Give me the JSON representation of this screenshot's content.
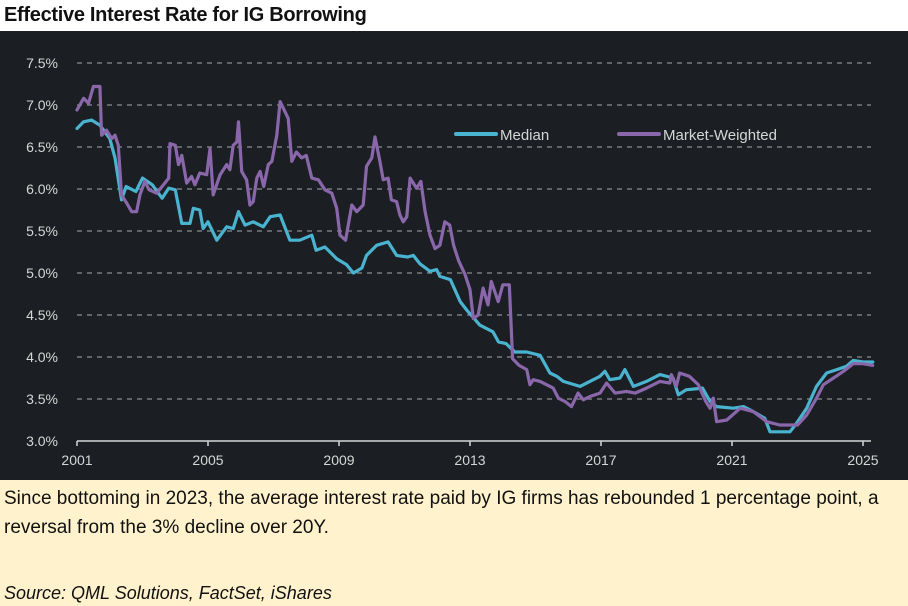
{
  "title": "Effective Interest Rate for IG Borrowing",
  "caption": "Since bottoming in 2023, the average interest rate paid by IG firms has rebounded 1 percentage point, a reversal from the 3% decline over 20Y.",
  "source": "Source: QML Solutions, FactSet, iShares",
  "chart_data": {
    "type": "line",
    "title": "Effective Interest Rate for IG Borrowing",
    "xlabel": "",
    "ylabel": "",
    "xlim": [
      2001,
      2025.3
    ],
    "ylim": [
      3.0,
      7.5
    ],
    "x_ticks": [
      2001,
      2005,
      2009,
      2013,
      2017,
      2021,
      2025
    ],
    "x_tick_labels": [
      "2001",
      "2005",
      "2009",
      "2013",
      "2017",
      "2021",
      "2025"
    ],
    "y_ticks": [
      3.0,
      3.5,
      4.0,
      4.5,
      5.0,
      5.5,
      6.0,
      6.5,
      7.0,
      7.5
    ],
    "y_tick_labels": [
      "3.0%",
      "3.5%",
      "4.0%",
      "4.5%",
      "5.0%",
      "5.5%",
      "6.0%",
      "6.5%",
      "7.0%",
      "7.5%"
    ],
    "grid": "horizontal dashed",
    "legend_position": "top-right",
    "colors": {
      "Median": "#4ab3d0",
      "Market-Weighted": "#8a67ab"
    },
    "series": [
      {
        "name": "Median",
        "points": [
          [
            2001.0,
            6.72
          ],
          [
            2001.2,
            6.8
          ],
          [
            2001.45,
            6.82
          ],
          [
            2001.7,
            6.76
          ],
          [
            2002.0,
            6.6
          ],
          [
            2002.16,
            6.37
          ],
          [
            2002.36,
            5.87
          ],
          [
            2002.5,
            6.03
          ],
          [
            2002.8,
            5.97
          ],
          [
            2003.0,
            6.13
          ],
          [
            2003.3,
            6.05
          ],
          [
            2003.6,
            5.89
          ],
          [
            2003.8,
            6.01
          ],
          [
            2004.0,
            5.99
          ],
          [
            2004.2,
            5.59
          ],
          [
            2004.45,
            5.59
          ],
          [
            2004.55,
            5.77
          ],
          [
            2004.75,
            5.75
          ],
          [
            2004.85,
            5.53
          ],
          [
            2005.0,
            5.61
          ],
          [
            2005.27,
            5.39
          ],
          [
            2005.57,
            5.55
          ],
          [
            2005.77,
            5.53
          ],
          [
            2005.93,
            5.73
          ],
          [
            2006.13,
            5.57
          ],
          [
            2006.38,
            5.61
          ],
          [
            2006.69,
            5.55
          ],
          [
            2006.9,
            5.67
          ],
          [
            2007.2,
            5.69
          ],
          [
            2007.5,
            5.39
          ],
          [
            2007.8,
            5.39
          ],
          [
            2008.17,
            5.45
          ],
          [
            2008.3,
            5.27
          ],
          [
            2008.57,
            5.31
          ],
          [
            2008.93,
            5.17
          ],
          [
            2009.23,
            5.1
          ],
          [
            2009.44,
            5.0
          ],
          [
            2009.7,
            5.06
          ],
          [
            2009.84,
            5.21
          ],
          [
            2010.15,
            5.33
          ],
          [
            2010.5,
            5.37
          ],
          [
            2010.76,
            5.21
          ],
          [
            2011.1,
            5.19
          ],
          [
            2011.27,
            5.21
          ],
          [
            2011.47,
            5.11
          ],
          [
            2011.78,
            5.02
          ],
          [
            2011.98,
            5.04
          ],
          [
            2012.08,
            4.96
          ],
          [
            2012.4,
            4.92
          ],
          [
            2012.7,
            4.66
          ],
          [
            2012.9,
            4.56
          ],
          [
            2013.3,
            4.38
          ],
          [
            2013.7,
            4.3
          ],
          [
            2013.87,
            4.18
          ],
          [
            2014.1,
            4.16
          ],
          [
            2014.37,
            4.06
          ],
          [
            2014.73,
            4.06
          ],
          [
            2015.14,
            4.02
          ],
          [
            2015.44,
            3.81
          ],
          [
            2015.65,
            3.77
          ],
          [
            2015.85,
            3.71
          ],
          [
            2016.36,
            3.65
          ],
          [
            2016.66,
            3.71
          ],
          [
            2016.97,
            3.77
          ],
          [
            2017.12,
            3.83
          ],
          [
            2017.27,
            3.73
          ],
          [
            2017.58,
            3.75
          ],
          [
            2017.73,
            3.85
          ],
          [
            2017.99,
            3.65
          ],
          [
            2018.39,
            3.71
          ],
          [
            2018.8,
            3.79
          ],
          [
            2019.2,
            3.75
          ],
          [
            2019.36,
            3.55
          ],
          [
            2019.6,
            3.61
          ],
          [
            2020.1,
            3.63
          ],
          [
            2020.33,
            3.47
          ],
          [
            2020.53,
            3.41
          ],
          [
            2021.04,
            3.39
          ],
          [
            2021.35,
            3.41
          ],
          [
            2021.65,
            3.35
          ],
          [
            2022.0,
            3.27
          ],
          [
            2022.16,
            3.11
          ],
          [
            2022.36,
            3.11
          ],
          [
            2022.77,
            3.11
          ],
          [
            2022.97,
            3.21
          ],
          [
            2023.28,
            3.39
          ],
          [
            2023.58,
            3.65
          ],
          [
            2023.89,
            3.81
          ],
          [
            2024.2,
            3.85
          ],
          [
            2024.5,
            3.89
          ],
          [
            2024.7,
            3.96
          ],
          [
            2025.0,
            3.94
          ],
          [
            2025.3,
            3.94
          ]
        ]
      },
      {
        "name": "Market-Weighted",
        "points": [
          [
            2001.0,
            6.94
          ],
          [
            2001.2,
            7.08
          ],
          [
            2001.35,
            7.02
          ],
          [
            2001.5,
            7.22
          ],
          [
            2001.7,
            7.22
          ],
          [
            2001.75,
            6.64
          ],
          [
            2001.9,
            6.7
          ],
          [
            2002.06,
            6.6
          ],
          [
            2002.16,
            6.64
          ],
          [
            2002.26,
            6.52
          ],
          [
            2002.36,
            5.93
          ],
          [
            2002.52,
            5.83
          ],
          [
            2002.67,
            5.73
          ],
          [
            2002.82,
            5.73
          ],
          [
            2002.92,
            5.93
          ],
          [
            2003.07,
            6.09
          ],
          [
            2003.2,
            5.99
          ],
          [
            2003.43,
            5.95
          ],
          [
            2003.6,
            6.03
          ],
          [
            2003.8,
            6.13
          ],
          [
            2003.84,
            6.54
          ],
          [
            2004.0,
            6.52
          ],
          [
            2004.1,
            6.29
          ],
          [
            2004.2,
            6.4
          ],
          [
            2004.35,
            6.07
          ],
          [
            2004.5,
            6.15
          ],
          [
            2004.6,
            6.05
          ],
          [
            2004.75,
            6.19
          ],
          [
            2004.96,
            6.17
          ],
          [
            2005.06,
            6.48
          ],
          [
            2005.16,
            5.93
          ],
          [
            2005.37,
            6.17
          ],
          [
            2005.57,
            6.29
          ],
          [
            2005.67,
            6.23
          ],
          [
            2005.77,
            6.52
          ],
          [
            2005.88,
            6.56
          ],
          [
            2005.93,
            6.8
          ],
          [
            2006.03,
            6.21
          ],
          [
            2006.18,
            6.11
          ],
          [
            2006.28,
            5.81
          ],
          [
            2006.38,
            5.85
          ],
          [
            2006.49,
            6.13
          ],
          [
            2006.59,
            6.21
          ],
          [
            2006.7,
            6.03
          ],
          [
            2006.84,
            6.29
          ],
          [
            2006.95,
            6.33
          ],
          [
            2007.1,
            6.64
          ],
          [
            2007.2,
            7.04
          ],
          [
            2007.45,
            6.84
          ],
          [
            2007.56,
            6.33
          ],
          [
            2007.7,
            6.44
          ],
          [
            2007.86,
            6.37
          ],
          [
            2008.0,
            6.4
          ],
          [
            2008.17,
            6.13
          ],
          [
            2008.37,
            6.11
          ],
          [
            2008.57,
            5.99
          ],
          [
            2008.78,
            5.95
          ],
          [
            2008.93,
            5.77
          ],
          [
            2009.03,
            5.45
          ],
          [
            2009.2,
            5.39
          ],
          [
            2009.39,
            5.81
          ],
          [
            2009.54,
            5.73
          ],
          [
            2009.74,
            5.81
          ],
          [
            2009.84,
            6.27
          ],
          [
            2010.0,
            6.37
          ],
          [
            2010.1,
            6.62
          ],
          [
            2010.25,
            6.33
          ],
          [
            2010.35,
            6.11
          ],
          [
            2010.5,
            6.13
          ],
          [
            2010.6,
            5.87
          ],
          [
            2010.76,
            5.85
          ],
          [
            2010.86,
            5.69
          ],
          [
            2010.96,
            5.61
          ],
          [
            2011.07,
            5.67
          ],
          [
            2011.17,
            6.13
          ],
          [
            2011.37,
            6.01
          ],
          [
            2011.5,
            6.09
          ],
          [
            2011.63,
            5.73
          ],
          [
            2011.78,
            5.45
          ],
          [
            2011.93,
            5.29
          ],
          [
            2012.08,
            5.33
          ],
          [
            2012.23,
            5.61
          ],
          [
            2012.38,
            5.57
          ],
          [
            2012.5,
            5.33
          ],
          [
            2012.65,
            5.15
          ],
          [
            2012.85,
            4.98
          ],
          [
            2013.0,
            4.8
          ],
          [
            2013.1,
            4.46
          ],
          [
            2013.25,
            4.5
          ],
          [
            2013.4,
            4.82
          ],
          [
            2013.55,
            4.62
          ],
          [
            2013.65,
            4.9
          ],
          [
            2013.86,
            4.66
          ],
          [
            2014.0,
            4.86
          ],
          [
            2014.2,
            4.86
          ],
          [
            2014.3,
            3.98
          ],
          [
            2014.5,
            3.9
          ],
          [
            2014.73,
            3.85
          ],
          [
            2014.83,
            3.67
          ],
          [
            2014.93,
            3.73
          ],
          [
            2015.14,
            3.71
          ],
          [
            2015.34,
            3.67
          ],
          [
            2015.54,
            3.63
          ],
          [
            2015.7,
            3.51
          ],
          [
            2015.9,
            3.47
          ],
          [
            2016.1,
            3.41
          ],
          [
            2016.3,
            3.57
          ],
          [
            2016.46,
            3.49
          ],
          [
            2016.66,
            3.53
          ],
          [
            2016.97,
            3.57
          ],
          [
            2017.17,
            3.69
          ],
          [
            2017.43,
            3.57
          ],
          [
            2017.78,
            3.59
          ],
          [
            2018.04,
            3.57
          ],
          [
            2018.39,
            3.63
          ],
          [
            2018.8,
            3.71
          ],
          [
            2019.1,
            3.69
          ],
          [
            2019.15,
            3.79
          ],
          [
            2019.3,
            3.65
          ],
          [
            2019.4,
            3.81
          ],
          [
            2019.7,
            3.77
          ],
          [
            2019.97,
            3.67
          ],
          [
            2020.2,
            3.47
          ],
          [
            2020.33,
            3.39
          ],
          [
            2020.43,
            3.51
          ],
          [
            2020.53,
            3.23
          ],
          [
            2020.84,
            3.25
          ],
          [
            2021.25,
            3.39
          ],
          [
            2021.65,
            3.35
          ],
          [
            2022.06,
            3.23
          ],
          [
            2022.46,
            3.19
          ],
          [
            2022.77,
            3.19
          ],
          [
            2023.0,
            3.19
          ],
          [
            2023.28,
            3.31
          ],
          [
            2023.58,
            3.51
          ],
          [
            2023.79,
            3.67
          ],
          [
            2024.1,
            3.75
          ],
          [
            2024.4,
            3.83
          ],
          [
            2024.7,
            3.92
          ],
          [
            2025.0,
            3.92
          ],
          [
            2025.3,
            3.9
          ]
        ]
      }
    ]
  }
}
